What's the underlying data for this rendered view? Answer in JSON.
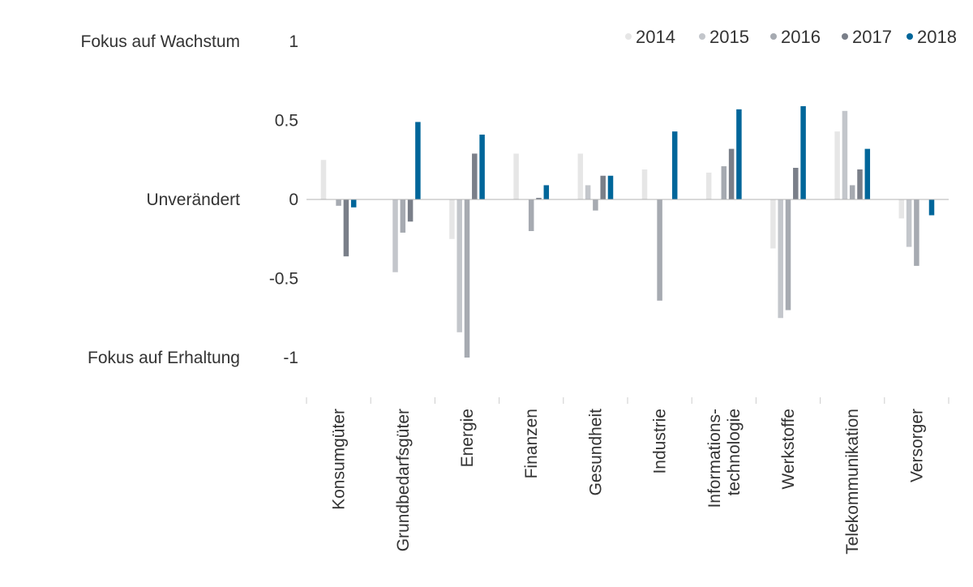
{
  "chart_data": {
    "type": "bar",
    "title": "",
    "xlabel": "",
    "ylabel": "",
    "ylim": [
      -1,
      1
    ],
    "yticks": [
      1,
      0.5,
      0,
      -0.5,
      -1
    ],
    "ytick_labels": [
      "1",
      "0.5",
      "0",
      "-0.5",
      "-1"
    ],
    "y_level_labels": [
      {
        "value": 1,
        "label": "Fokus auf Wachstum"
      },
      {
        "value": 0,
        "label": "Unverändert"
      },
      {
        "value": -1,
        "label": "Fokus auf Erhaltung"
      }
    ],
    "categories": [
      [
        "Konsumgüter"
      ],
      [
        "Grundbedarfsgüter"
      ],
      [
        "Energie"
      ],
      [
        "Finanzen"
      ],
      [
        "Gesundheit"
      ],
      [
        "Industrie"
      ],
      [
        "Informations-",
        "technologie"
      ],
      [
        "Werkstoffe"
      ],
      [
        "Telekommunikation"
      ],
      [
        "Versorger"
      ]
    ],
    "grid": false,
    "legend_position": "top-right",
    "series": [
      {
        "name": "2014",
        "color": "#e6e6e6",
        "values": [
          0.25,
          0.0,
          -0.25,
          0.29,
          0.29,
          0.19,
          0.17,
          -0.31,
          0.43,
          -0.12
        ]
      },
      {
        "name": "2015",
        "color": "#c3c6cb",
        "values": [
          0.0,
          -0.46,
          -0.84,
          0.0,
          0.09,
          0.0,
          0.0,
          -0.75,
          0.56,
          -0.3
        ]
      },
      {
        "name": "2016",
        "color": "#a6aab1",
        "values": [
          -0.04,
          -0.21,
          -1.0,
          -0.2,
          -0.07,
          -0.64,
          0.21,
          -0.7,
          0.09,
          -0.42
        ]
      },
      {
        "name": "2017",
        "color": "#7a7f89",
        "values": [
          -0.36,
          -0.14,
          0.29,
          0.01,
          0.15,
          0.0,
          0.32,
          0.2,
          0.19,
          0.0
        ]
      },
      {
        "name": "2018",
        "color": "#00669a",
        "values": [
          -0.05,
          0.49,
          0.41,
          0.09,
          0.15,
          0.43,
          0.57,
          0.59,
          0.32,
          -0.1
        ]
      }
    ]
  }
}
